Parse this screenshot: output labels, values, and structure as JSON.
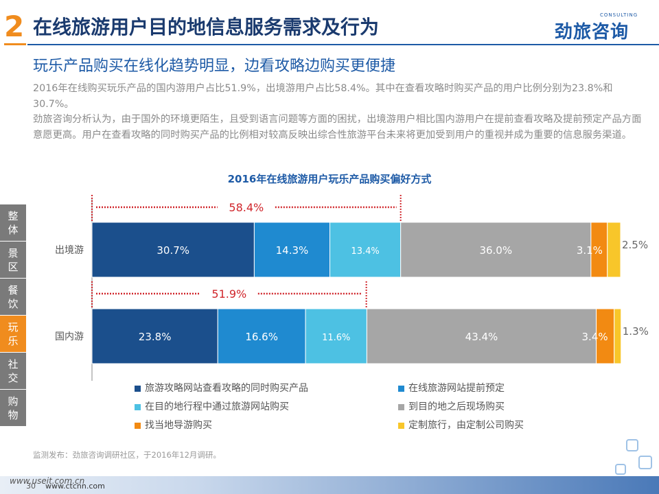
{
  "header": {
    "section_number": "2",
    "title": "在线旅游用户目的地信息服务需求及行为",
    "logo_main": "劲旅咨询",
    "logo_sub": "CONSULTING"
  },
  "subtitle": "玩乐产品购买在线化趋势明显，边看攻略边购买更便捷",
  "body": {
    "para1": "2016年在线购买玩乐产品的国内游用户占比51.9%，出境游用户占比58.4%。其中在查看攻略时购买产品的用户比例分别为23.8%和30.7%。",
    "para2": "劲旅咨询分析认为，由于国外的环境更陌生，且受到语言问题等方面的困扰，出境游用户相比国内游用户在提前查看攻略及提前预定产品方面意愿更高。用户在查看攻略的同时购买产品的比例相对较高反映出综合性旅游平台未来将更加受到用户的重视并成为重要的信息服务渠道。"
  },
  "side_tabs": [
    {
      "label": "整体",
      "active": false
    },
    {
      "label": "景区",
      "active": false
    },
    {
      "label": "餐饮",
      "active": false
    },
    {
      "label": "玩乐",
      "active": true
    },
    {
      "label": "社交",
      "active": false
    },
    {
      "label": "购物",
      "active": false
    }
  ],
  "chart_data": {
    "type": "bar",
    "orientation": "horizontal",
    "stacked": true,
    "title": "2016年在线旅游用户玩乐产品购买偏好方式",
    "categories": [
      "出境游",
      "国内游"
    ],
    "series": [
      {
        "name": "旅游攻略网站查看攻略的同时购买产品",
        "values": [
          30.7,
          23.8
        ],
        "labels": [
          "30.7%",
          "23.8%"
        ],
        "color": "#1b4f8c"
      },
      {
        "name": "在线旅游网站提前预定",
        "values": [
          14.3,
          16.6
        ],
        "labels": [
          "14.3%",
          "16.6%"
        ],
        "color": "#1f8ad0"
      },
      {
        "name": "在目的地行程中通过旅游网站购买",
        "values": [
          13.4,
          11.6
        ],
        "labels": [
          "13.4%",
          "11.6%"
        ],
        "color": "#4dc1e3"
      },
      {
        "name": "到目的地之后现场购买",
        "values": [
          36.0,
          43.4
        ],
        "labels": [
          "36.0%",
          "43.4%"
        ],
        "color": "#a6a6a6"
      },
      {
        "name": "找当地导游购买",
        "values": [
          3.1,
          3.4
        ],
        "labels": [
          "3.1%",
          "3.4%"
        ],
        "color": "#f28a12"
      },
      {
        "name": "定制旅行，由定制公司购买",
        "values": [
          2.5,
          1.3
        ],
        "labels": [
          "2.5%",
          "1.3%"
        ],
        "color": "#f8c62a"
      }
    ],
    "annotations": [
      {
        "category": "出境游",
        "label": "58.4%",
        "value": 58.4
      },
      {
        "category": "国内游",
        "label": "51.9%",
        "value": 51.9
      }
    ],
    "xlim": [
      0,
      100
    ],
    "legend_position": "bottom",
    "grid": false,
    "accent_color": "#d0252b"
  },
  "footer": {
    "source": "监测发布：劲旅咨询调研社区，于2016年12月调研。",
    "page_number": "30",
    "url_watermark": "www.useit.com.cn",
    "url_site": "www.ctcnn.com"
  }
}
